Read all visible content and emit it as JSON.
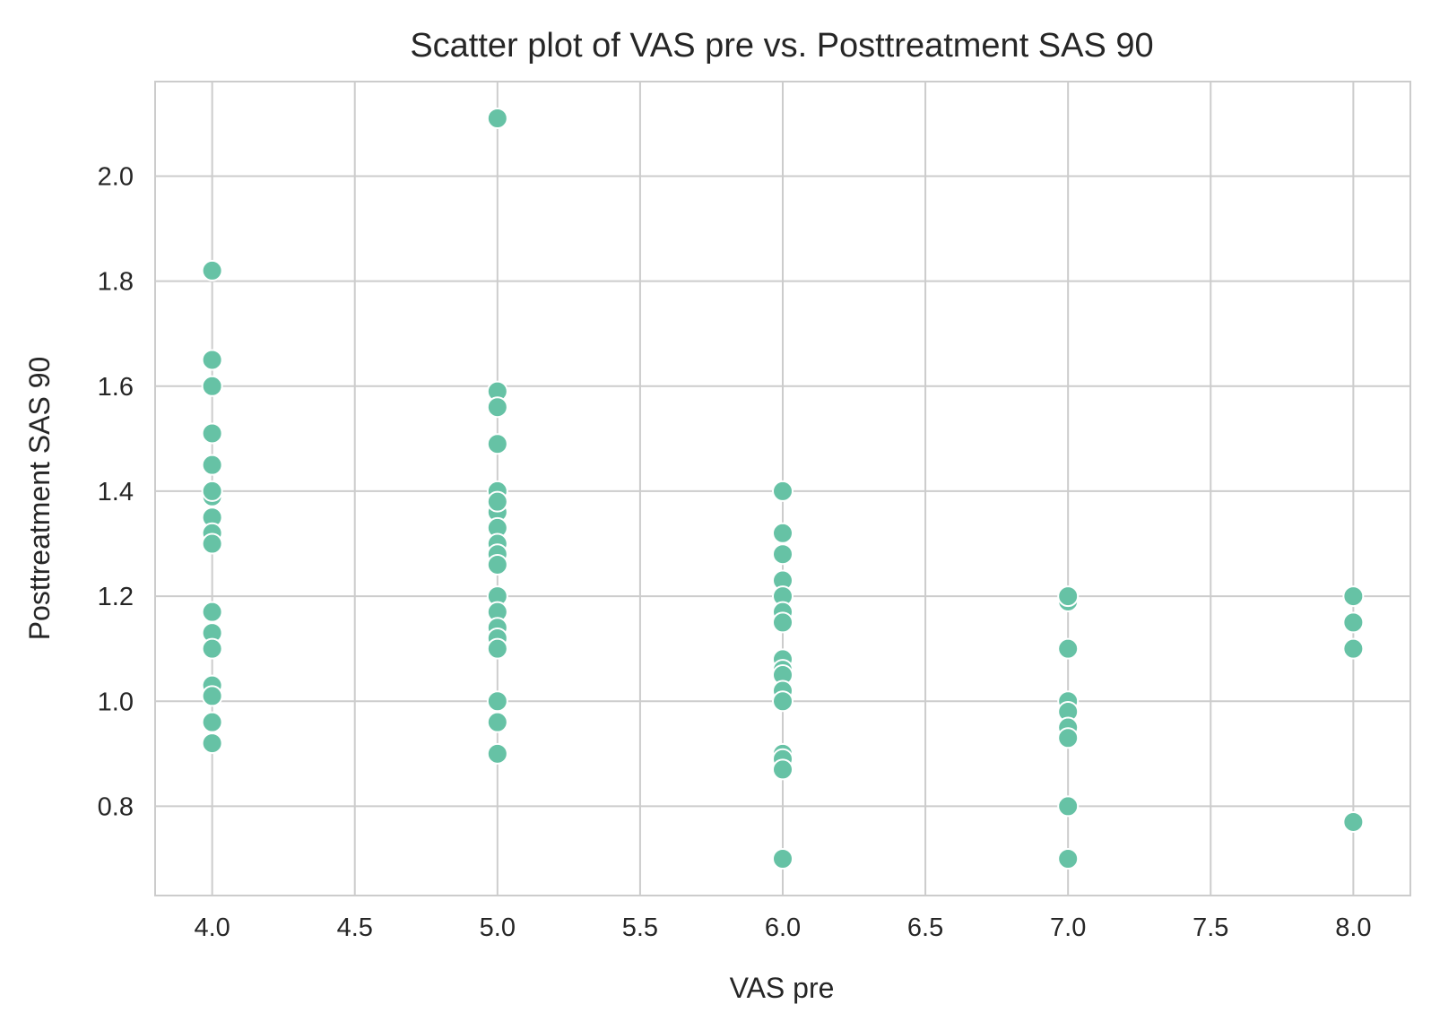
{
  "chart_data": {
    "type": "scatter",
    "title": "Scatter plot of VAS pre vs. Posttreatment SAS 90",
    "xlabel": "VAS pre",
    "ylabel": "Posttreatment SAS 90",
    "xlim": [
      3.8,
      8.2
    ],
    "ylim": [
      0.63,
      2.18
    ],
    "xticks": [
      4.0,
      4.5,
      5.0,
      5.5,
      6.0,
      6.5,
      7.0,
      7.5,
      8.0
    ],
    "xtick_labels": [
      "4.0",
      "4.5",
      "5.0",
      "5.5",
      "6.0",
      "6.5",
      "7.0",
      "7.5",
      "8.0"
    ],
    "yticks": [
      0.8,
      1.0,
      1.2,
      1.4,
      1.6,
      1.8,
      2.0
    ],
    "ytick_labels": [
      "0.8",
      "1.0",
      "1.2",
      "1.4",
      "1.6",
      "1.8",
      "2.0"
    ],
    "grid": true,
    "marker_color": "#66c2a5",
    "marker_edge_color": "#ffffff",
    "points": [
      {
        "x": 4,
        "y": 1.82
      },
      {
        "x": 4,
        "y": 1.65
      },
      {
        "x": 4,
        "y": 1.6
      },
      {
        "x": 4,
        "y": 1.51
      },
      {
        "x": 4,
        "y": 1.45
      },
      {
        "x": 4,
        "y": 1.39
      },
      {
        "x": 4,
        "y": 1.4
      },
      {
        "x": 4,
        "y": 1.35
      },
      {
        "x": 4,
        "y": 1.32
      },
      {
        "x": 4,
        "y": 1.3
      },
      {
        "x": 4,
        "y": 1.17
      },
      {
        "x": 4,
        "y": 1.13
      },
      {
        "x": 4,
        "y": 1.1
      },
      {
        "x": 4,
        "y": 1.03
      },
      {
        "x": 4,
        "y": 1.01
      },
      {
        "x": 4,
        "y": 0.96
      },
      {
        "x": 4,
        "y": 0.92
      },
      {
        "x": 5,
        "y": 2.11
      },
      {
        "x": 5,
        "y": 1.59
      },
      {
        "x": 5,
        "y": 1.56
      },
      {
        "x": 5,
        "y": 1.49
      },
      {
        "x": 5,
        "y": 1.4
      },
      {
        "x": 5,
        "y": 1.36
      },
      {
        "x": 5,
        "y": 1.38
      },
      {
        "x": 5,
        "y": 1.33
      },
      {
        "x": 5,
        "y": 1.3
      },
      {
        "x": 5,
        "y": 1.28
      },
      {
        "x": 5,
        "y": 1.26
      },
      {
        "x": 5,
        "y": 1.2
      },
      {
        "x": 5,
        "y": 1.17
      },
      {
        "x": 5,
        "y": 1.14
      },
      {
        "x": 5,
        "y": 1.12
      },
      {
        "x": 5,
        "y": 1.1
      },
      {
        "x": 5,
        "y": 1.0
      },
      {
        "x": 5,
        "y": 0.96
      },
      {
        "x": 5,
        "y": 0.9
      },
      {
        "x": 6,
        "y": 1.4
      },
      {
        "x": 6,
        "y": 1.32
      },
      {
        "x": 6,
        "y": 1.28
      },
      {
        "x": 6,
        "y": 1.23
      },
      {
        "x": 6,
        "y": 1.2
      },
      {
        "x": 6,
        "y": 1.17
      },
      {
        "x": 6,
        "y": 1.15
      },
      {
        "x": 6,
        "y": 1.08
      },
      {
        "x": 6,
        "y": 1.06
      },
      {
        "x": 6,
        "y": 1.05
      },
      {
        "x": 6,
        "y": 1.02
      },
      {
        "x": 6,
        "y": 1.0
      },
      {
        "x": 6,
        "y": 0.9
      },
      {
        "x": 6,
        "y": 0.89
      },
      {
        "x": 6,
        "y": 0.87
      },
      {
        "x": 6,
        "y": 0.7
      },
      {
        "x": 7,
        "y": 1.19
      },
      {
        "x": 7,
        "y": 1.2
      },
      {
        "x": 7,
        "y": 1.1
      },
      {
        "x": 7,
        "y": 1.0
      },
      {
        "x": 7,
        "y": 0.98
      },
      {
        "x": 7,
        "y": 0.95
      },
      {
        "x": 7,
        "y": 0.93
      },
      {
        "x": 7,
        "y": 0.8
      },
      {
        "x": 7,
        "y": 0.7
      },
      {
        "x": 8,
        "y": 1.2
      },
      {
        "x": 8,
        "y": 1.15
      },
      {
        "x": 8,
        "y": 1.1
      },
      {
        "x": 8,
        "y": 0.77
      }
    ]
  }
}
